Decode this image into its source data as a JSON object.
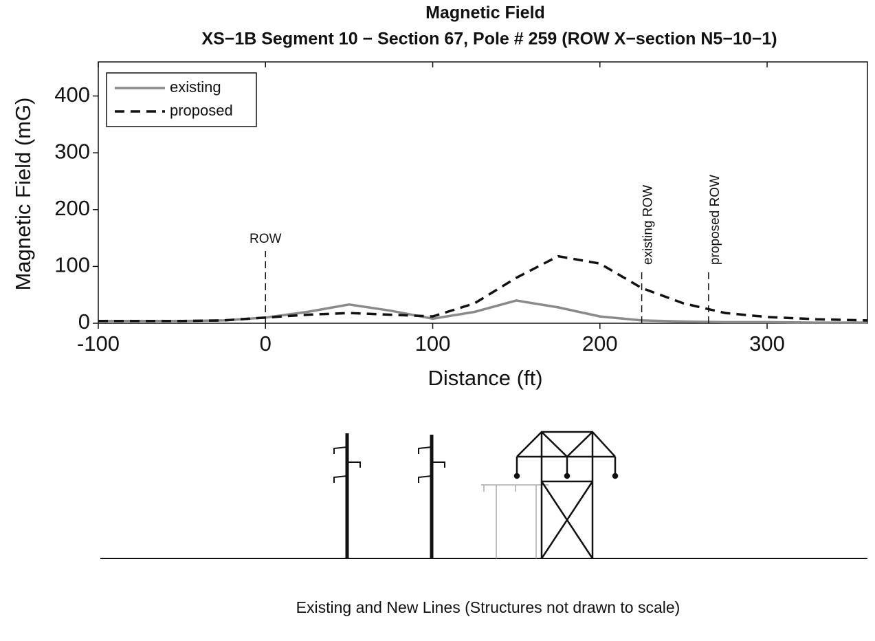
{
  "chart_data": {
    "type": "line",
    "title": "Magnetic Field",
    "subtitle": "XS−1B Segment 10 − Section 67, Pole # 259 (ROW X−section N5−10−1)",
    "x_label": "Distance (ft)",
    "y_label": "Magnetic Field (mG)",
    "x": [
      -100,
      -75,
      -50,
      -25,
      0,
      25,
      50,
      75,
      100,
      125,
      150,
      175,
      200,
      225,
      250,
      275,
      300,
      330,
      360
    ],
    "series": [
      {
        "name": "existing",
        "color": "#8a8a8a",
        "dash": "solid",
        "values": [
          4,
          4,
          4,
          5,
          10,
          20,
          33,
          22,
          8,
          20,
          40,
          28,
          12,
          5,
          3,
          2,
          2,
          1,
          1
        ]
      },
      {
        "name": "proposed",
        "color": "#111111",
        "dash": "dashed",
        "values": [
          4,
          4,
          4,
          5,
          10,
          15,
          18,
          15,
          12,
          35,
          80,
          118,
          105,
          62,
          35,
          18,
          11,
          7,
          5
        ]
      }
    ],
    "xlim": [
      -100,
      360
    ],
    "ylim": [
      0,
      460
    ],
    "xticks": [
      -100,
      0,
      100,
      200,
      300
    ],
    "yticks": [
      0,
      100,
      200,
      300,
      400
    ],
    "legend": "upper left",
    "annotations": [
      {
        "text": "ROW",
        "x": 0,
        "rotated": false
      },
      {
        "text": "existing ROW",
        "x": 225,
        "rotated": true
      },
      {
        "text": "proposed ROW",
        "x": 265,
        "rotated": true
      }
    ]
  },
  "diagram": {
    "caption": "Existing and New Lines (Structures not drawn to scale)"
  }
}
